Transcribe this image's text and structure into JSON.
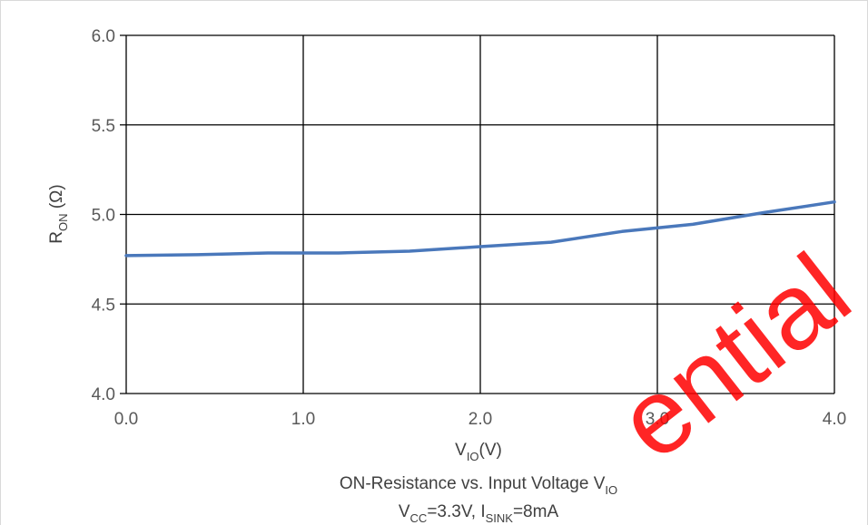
{
  "chart_data": {
    "type": "line",
    "x": [
      0.0,
      0.4,
      0.8,
      1.2,
      1.6,
      2.0,
      2.4,
      2.8,
      3.2,
      3.6,
      4.0
    ],
    "series": [
      {
        "values": [
          4.77,
          4.775,
          4.785,
          4.785,
          4.795,
          4.82,
          4.845,
          4.905,
          4.945,
          5.01,
          5.07
        ],
        "color": "#4a78bb"
      }
    ],
    "xlim": [
      0.0,
      4.0
    ],
    "ylim": [
      4.0,
      6.0
    ],
    "x_ticks": [
      "0.0",
      "1.0",
      "2.0",
      "3.0",
      "4.0"
    ],
    "y_ticks": [
      "4.0",
      "4.5",
      "5.0",
      "5.5",
      "6.0"
    ],
    "xlabel": {
      "main": "V",
      "sub": "IO",
      "suffix": "(V)"
    },
    "ylabel": {
      "main": "R",
      "sub": "ON",
      "suffix": " (Ω)"
    },
    "title_line1": {
      "prefix": "ON-Resistance vs.  Input Voltage V",
      "sub": "IO"
    },
    "title_line2": {
      "p1": "V",
      "s1": "CC",
      "p2": "=3.3V, I",
      "s2": "SINK",
      "p3": "=8mA"
    },
    "grid": true,
    "legend": "none"
  },
  "watermark": {
    "text": "ential",
    "color": "#ff0000"
  }
}
